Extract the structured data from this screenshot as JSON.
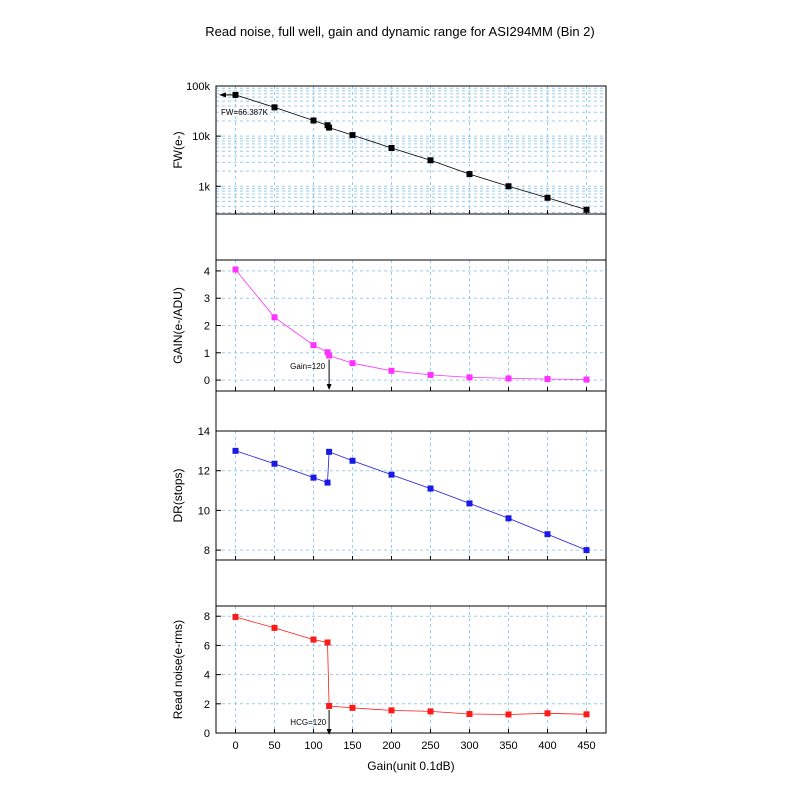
{
  "title": "Read noise, full well, gain and dynamic range for ASI294MM (Bin 2)",
  "xlabel": "Gain(unit 0.1dB)",
  "x_ticks": [
    0,
    50,
    100,
    150,
    200,
    250,
    300,
    350,
    400,
    450
  ],
  "colors": {
    "fw": "#000000",
    "gain": "#ff33ff",
    "dr": "#1a1ae6",
    "rn": "#ff1a1a",
    "grid": "#99ccee"
  },
  "chart_data": [
    {
      "type": "line",
      "ylabel": "FW(e-)",
      "yscale": "log",
      "ylim": [
        280,
        100000
      ],
      "y_ticks": [
        1000,
        10000,
        100000
      ],
      "y_tick_labels": [
        "1k",
        "10k",
        "100k"
      ],
      "x": [
        0,
        50,
        100,
        118,
        120,
        150,
        200,
        250,
        300,
        350,
        400,
        450
      ],
      "values": [
        66387,
        37500,
        20500,
        16500,
        14800,
        10500,
        5800,
        3300,
        1750,
        1000,
        590,
        340
      ],
      "annotation": "FW=66.387K"
    },
    {
      "type": "line",
      "ylabel": "GAIN(e-/ADU)",
      "ylim": [
        -0.4,
        4.4
      ],
      "y_ticks": [
        0,
        1,
        2,
        3,
        4
      ],
      "x": [
        0,
        50,
        100,
        118,
        120,
        150,
        200,
        250,
        300,
        350,
        400,
        450
      ],
      "values": [
        4.05,
        2.3,
        1.28,
        1.02,
        0.9,
        0.62,
        0.34,
        0.19,
        0.1,
        0.06,
        0.04,
        0.02
      ],
      "annotation": "Gain=120"
    },
    {
      "type": "line",
      "ylabel": "DR(stops)",
      "ylim": [
        7.5,
        14
      ],
      "y_ticks": [
        8,
        10,
        12,
        14
      ],
      "x": [
        0,
        50,
        100,
        118,
        120,
        150,
        200,
        250,
        300,
        350,
        400,
        450
      ],
      "values": [
        13.0,
        12.35,
        11.65,
        11.4,
        12.95,
        12.5,
        11.8,
        11.1,
        10.35,
        9.6,
        8.8,
        8.0
      ]
    },
    {
      "type": "line",
      "ylabel": "Read noise(e-rms)",
      "ylim": [
        0,
        8.7
      ],
      "y_ticks": [
        0,
        2,
        4,
        6,
        8
      ],
      "x": [
        0,
        50,
        100,
        118,
        120,
        150,
        200,
        250,
        300,
        350,
        400,
        450
      ],
      "values": [
        7.95,
        7.2,
        6.4,
        6.2,
        1.85,
        1.72,
        1.55,
        1.48,
        1.3,
        1.27,
        1.35,
        1.28
      ],
      "annotation": "HCG=120"
    }
  ]
}
